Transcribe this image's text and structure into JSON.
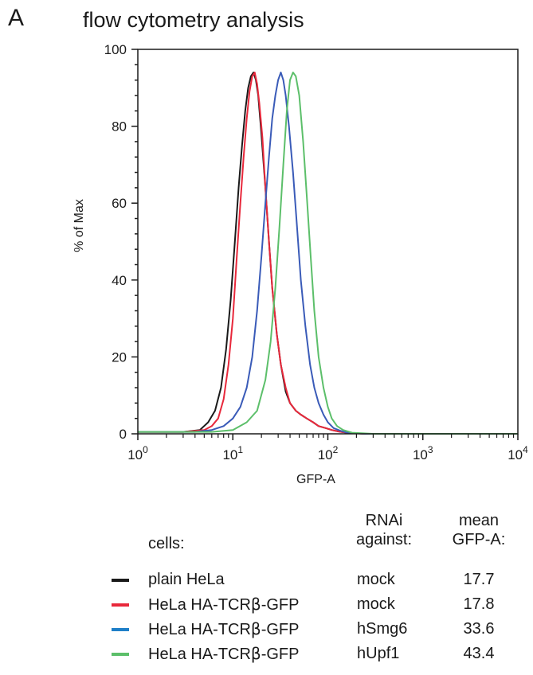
{
  "panel_label": "A",
  "chart_data": {
    "type": "line",
    "title": "flow cytometry analysis",
    "xlabel": "GFP-A",
    "ylabel": "% of Max",
    "xscale": "log",
    "xlim": [
      1,
      10000
    ],
    "ylim": [
      0,
      100
    ],
    "yticks": [
      "0",
      "20",
      "40",
      "60",
      "80",
      "100"
    ],
    "xticks": [
      {
        "base": "10",
        "exp": "0"
      },
      {
        "base": "10",
        "exp": "1"
      },
      {
        "base": "10",
        "exp": "2"
      },
      {
        "base": "10",
        "exp": "3"
      },
      {
        "base": "10",
        "exp": "4"
      }
    ],
    "grid": false,
    "series": [
      {
        "name": "plain HeLa",
        "color": "#1a1a1a",
        "x": [
          1,
          3,
          4.5,
          5.5,
          6.5,
          7.5,
          8.5,
          9.5,
          10.5,
          11.5,
          12.5,
          13.5,
          14.5,
          15.5,
          16.5,
          17.5,
          18.5,
          20,
          22,
          24,
          26,
          29,
          32,
          36,
          40,
          46,
          52,
          60,
          70,
          80,
          95,
          110,
          130,
          160,
          250,
          1000,
          10000
        ],
        "y": [
          0.5,
          0.5,
          1,
          3,
          6,
          12,
          22,
          35,
          50,
          64,
          75,
          84,
          90,
          93,
          94,
          92,
          88,
          78,
          64,
          50,
          38,
          26,
          18,
          11,
          8,
          6,
          5,
          4,
          3,
          2,
          1.5,
          1,
          0.6,
          0.3,
          0,
          0,
          0
        ]
      },
      {
        "name": "HeLa HA-TCRβ-GFP",
        "color": "#e8283b",
        "x": [
          1,
          3,
          5,
          6,
          7,
          8,
          9,
          10,
          11,
          12,
          13,
          14,
          15,
          16,
          17,
          18,
          19,
          20.5,
          22,
          24,
          26,
          29,
          32,
          36,
          40,
          46,
          52,
          60,
          70,
          80,
          95,
          110,
          130,
          160,
          250,
          1000,
          10000
        ],
        "y": [
          0.5,
          0.5,
          1,
          2,
          4,
          9,
          18,
          30,
          46,
          60,
          72,
          82,
          89,
          93,
          94,
          91,
          86,
          77,
          64,
          50,
          38,
          26,
          18,
          12,
          8,
          6,
          5,
          4,
          3,
          2,
          1.5,
          1,
          0.6,
          0.3,
          0,
          0,
          0
        ]
      },
      {
        "name": "HeLa HA-TCRβ-GFP",
        "color": "#3a5bb8",
        "x": [
          1,
          4,
          6,
          8,
          10,
          12,
          14,
          16,
          18,
          20,
          22,
          24,
          26,
          28,
          30,
          32,
          34,
          36,
          39,
          43,
          47,
          52,
          58,
          65,
          72,
          80,
          90,
          100,
          115,
          135,
          160,
          250,
          1000,
          10000
        ],
        "y": [
          0.5,
          0.5,
          1,
          2,
          4,
          7,
          12,
          20,
          32,
          46,
          60,
          72,
          82,
          88,
          92,
          94,
          92,
          88,
          80,
          68,
          55,
          40,
          28,
          18,
          12,
          8,
          5,
          3,
          1.5,
          0.8,
          0.3,
          0,
          0,
          0
        ]
      },
      {
        "name": "HeLa HA-TCRβ-GFP",
        "color": "#5cbf6a",
        "x": [
          1,
          6,
          10,
          14,
          18,
          22,
          25,
          28,
          31,
          34,
          37,
          40,
          43,
          46,
          50,
          55,
          60,
          66,
          72,
          80,
          90,
          100,
          110,
          125,
          145,
          180,
          300,
          1000,
          10000
        ],
        "y": [
          0.5,
          0.5,
          1,
          3,
          6,
          14,
          24,
          38,
          54,
          70,
          84,
          92,
          94,
          93,
          88,
          76,
          62,
          46,
          32,
          20,
          12,
          7,
          4,
          2,
          1,
          0.3,
          0,
          0,
          0
        ]
      }
    ]
  },
  "table": {
    "headers": {
      "cells": "cells:",
      "rnai_line1": "RNAi",
      "rnai_line2": "against:",
      "mean_line1": "mean",
      "mean_line2": "GFP-A:"
    },
    "rows": [
      {
        "swatch": "#1a1a1a",
        "cells_pre": "plain HeLa",
        "cells_greek": "",
        "cells_post": "",
        "rnai": "mock",
        "mean": "17.7"
      },
      {
        "swatch": "#e8283b",
        "cells_pre": "HeLa HA-TCR",
        "cells_greek": "β",
        "cells_post": "-GFP",
        "rnai": "mock",
        "mean": "17.8"
      },
      {
        "swatch": "#1f7fc8",
        "cells_pre": "HeLa HA-TCR",
        "cells_greek": "β",
        "cells_post": "-GFP",
        "rnai": "hSmg6",
        "mean": "33.6"
      },
      {
        "swatch": "#5cbf6a",
        "cells_pre": "HeLa HA-TCR",
        "cells_greek": "β",
        "cells_post": "-GFP",
        "rnai": "hUpf1",
        "mean": "43.4"
      }
    ]
  }
}
